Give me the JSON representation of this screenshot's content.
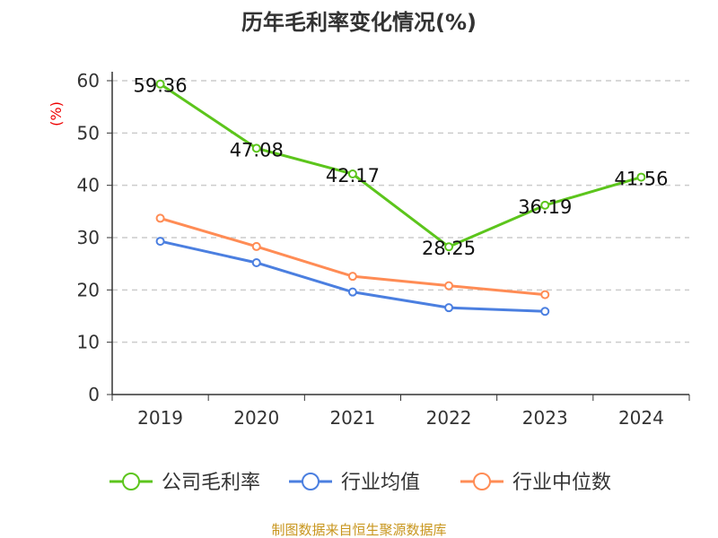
{
  "chart_data": {
    "type": "line",
    "title": "历年毛利率变化情况(%)",
    "ylabel": "(%)",
    "xlabel": "",
    "categories": [
      "2019",
      "2020",
      "2021",
      "2022",
      "2023",
      "2024"
    ],
    "ylim": [
      0,
      60
    ],
    "yticks": [
      0,
      10,
      20,
      30,
      40,
      50,
      60
    ],
    "grid": true,
    "legend_position": "bottom",
    "series": [
      {
        "name": "公司毛利率",
        "color": "#5cc51c",
        "values": [
          59.36,
          47.08,
          42.17,
          28.25,
          36.19,
          41.56
        ],
        "labels": [
          "59.36",
          "47.08",
          "42.17",
          "28.25",
          "36.19",
          "41.56"
        ]
      },
      {
        "name": "行业均值",
        "color": "#4b7fe0",
        "values": [
          29.3,
          25.2,
          19.6,
          16.6,
          15.9,
          null
        ]
      },
      {
        "name": "行业中位数",
        "color": "#ff8c55",
        "values": [
          33.7,
          28.3,
          22.6,
          20.8,
          19.1,
          null
        ]
      }
    ]
  },
  "footer": "制图数据来自恒生聚源数据库"
}
